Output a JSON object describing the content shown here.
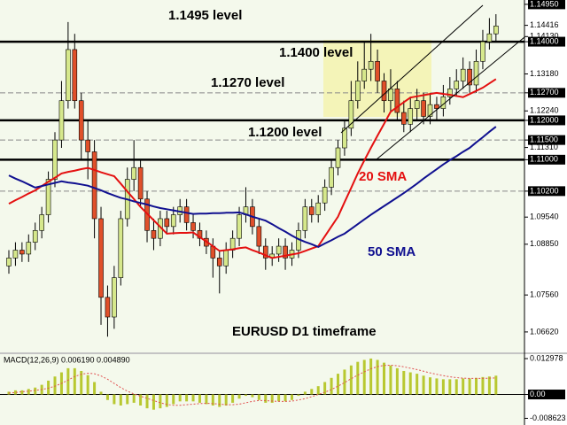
{
  "chart_data": [
    {
      "type": "candlestick",
      "annotations": [
        {
          "text": "1.1495 level"
        },
        {
          "text": "1.1400 level"
        },
        {
          "text": "1.1270 level"
        },
        {
          "text": "1.1200 level"
        },
        {
          "text": "EURUSD D1 timeframe"
        }
      ],
      "ylim": [
        1.061,
        1.1506
      ],
      "yticks": [
        {
          "value": 1.1495,
          "label": "1.14950",
          "boxed": true
        },
        {
          "value": 1.14416,
          "label": "1.14416"
        },
        {
          "value": 1.1413,
          "label": "1.14130"
        },
        {
          "value": 1.14,
          "label": "1.14000",
          "boxed": true
        },
        {
          "value": 1.1318,
          "label": "1.13180"
        },
        {
          "value": 1.127,
          "label": "1.12700",
          "boxed": true
        },
        {
          "value": 1.1224,
          "label": "1.12240"
        },
        {
          "value": 1.12,
          "label": "1.12000",
          "boxed": true
        },
        {
          "value": 1.115,
          "label": "1.11500",
          "boxed": true
        },
        {
          "value": 1.1131,
          "label": "1.11310"
        },
        {
          "value": 1.11,
          "label": "1.11000",
          "boxed": true
        },
        {
          "value": 1.102,
          "label": "1.10200",
          "boxed": true
        },
        {
          "value": 1.0954,
          "label": "1.09540"
        },
        {
          "value": 1.0885,
          "label": "1.08850"
        },
        {
          "value": 1.0756,
          "label": "1.07560"
        },
        {
          "value": 1.0662,
          "label": "1.06620"
        }
      ],
      "levels": [
        {
          "value": 1.14,
          "style": "solid"
        },
        {
          "value": 1.127,
          "style": "dashed"
        },
        {
          "value": 1.12,
          "style": "solid"
        },
        {
          "value": 1.115,
          "style": "dashed"
        },
        {
          "value": 1.11,
          "style": "solid"
        },
        {
          "value": 1.102,
          "style": "dashed"
        }
      ],
      "up_color": "#d6e88c",
      "down_color": "#e0502a",
      "candles": {
        "open": [
          1.083,
          1.085,
          1.087,
          1.086,
          1.089,
          1.092,
          1.096,
          1.105,
          1.115,
          1.125,
          1.138,
          1.125,
          1.115,
          1.112,
          1.095,
          1.075,
          1.07,
          1.08,
          1.095,
          1.105,
          1.108,
          1.1,
          1.092,
          1.09,
          1.095,
          1.093,
          1.096,
          1.098,
          1.094,
          1.092,
          1.09,
          1.088,
          1.085,
          1.083,
          1.087,
          1.09,
          1.096,
          1.098,
          1.093,
          1.088,
          1.085,
          1.086,
          1.088,
          1.085,
          1.087,
          1.092,
          1.098,
          1.096,
          1.099,
          1.103,
          1.108,
          1.113,
          1.118,
          1.125,
          1.13,
          1.133,
          1.135,
          1.13,
          1.125,
          1.128,
          1.122,
          1.119,
          1.123,
          1.125,
          1.121,
          1.124,
          1.123,
          1.126,
          1.128,
          1.13,
          1.133,
          1.129,
          1.135,
          1.14,
          1.142
        ],
        "high": [
          1.087,
          1.089,
          1.089,
          1.091,
          1.094,
          1.098,
          1.107,
          1.117,
          1.13,
          1.145,
          1.142,
          1.127,
          1.12,
          1.115,
          1.098,
          1.078,
          1.083,
          1.097,
          1.108,
          1.115,
          1.11,
          1.102,
          1.095,
          1.097,
          1.097,
          1.098,
          1.1,
          1.1,
          1.096,
          1.094,
          1.092,
          1.09,
          1.087,
          1.089,
          1.092,
          1.098,
          1.103,
          1.1,
          1.095,
          1.09,
          1.088,
          1.09,
          1.09,
          1.089,
          1.094,
          1.1,
          1.1,
          1.101,
          1.105,
          1.11,
          1.115,
          1.12,
          1.13,
          1.135,
          1.14,
          1.142,
          1.138,
          1.132,
          1.133,
          1.13,
          1.125,
          1.126,
          1.128,
          1.127,
          1.127,
          1.126,
          1.129,
          1.131,
          1.133,
          1.136,
          1.135,
          1.138,
          1.143,
          1.146,
          1.147
        ],
        "low": [
          1.081,
          1.083,
          1.084,
          1.084,
          1.087,
          1.09,
          1.094,
          1.103,
          1.113,
          1.123,
          1.123,
          1.11,
          1.105,
          1.09,
          1.068,
          1.065,
          1.067,
          1.078,
          1.093,
          1.102,
          1.098,
          1.089,
          1.087,
          1.088,
          1.091,
          1.091,
          1.094,
          1.092,
          1.09,
          1.088,
          1.086,
          1.08,
          1.076,
          1.081,
          1.085,
          1.088,
          1.094,
          1.091,
          1.086,
          1.082,
          1.083,
          1.084,
          1.082,
          1.083,
          1.085,
          1.09,
          1.094,
          1.094,
          1.097,
          1.101,
          1.106,
          1.111,
          1.116,
          1.123,
          1.128,
          1.13,
          1.127,
          1.122,
          1.122,
          1.12,
          1.117,
          1.117,
          1.12,
          1.119,
          1.119,
          1.12,
          1.121,
          1.124,
          1.126,
          1.128,
          1.127,
          1.127,
          1.133,
          1.138,
          1.14
        ],
        "close": [
          1.085,
          1.087,
          1.086,
          1.089,
          1.092,
          1.096,
          1.105,
          1.115,
          1.125,
          1.138,
          1.125,
          1.115,
          1.112,
          1.095,
          1.075,
          1.07,
          1.08,
          1.095,
          1.105,
          1.108,
          1.1,
          1.092,
          1.09,
          1.095,
          1.093,
          1.096,
          1.098,
          1.094,
          1.092,
          1.09,
          1.088,
          1.085,
          1.083,
          1.087,
          1.09,
          1.096,
          1.098,
          1.093,
          1.088,
          1.085,
          1.086,
          1.088,
          1.085,
          1.087,
          1.092,
          1.098,
          1.096,
          1.099,
          1.103,
          1.108,
          1.113,
          1.118,
          1.125,
          1.13,
          1.133,
          1.135,
          1.13,
          1.125,
          1.128,
          1.122,
          1.119,
          1.123,
          1.125,
          1.121,
          1.124,
          1.123,
          1.126,
          1.128,
          1.13,
          1.133,
          1.129,
          1.135,
          1.14,
          1.142,
          1.144
        ]
      },
      "series": [
        {
          "name": "20 SMA",
          "color": "#e41010",
          "values": [
            1.0988,
            1.0997,
            1.1005,
            1.1014,
            1.1022,
            1.1033,
            1.1044,
            1.1054,
            1.1065,
            1.1069,
            1.1072,
            1.1076,
            1.1079,
            1.1074,
            1.1068,
            1.1063,
            1.1058,
            1.1039,
            1.1019,
            1.1,
            1.098,
            1.0963,
            1.0946,
            1.0929,
            1.0912,
            1.0913,
            1.0914,
            1.0914,
            1.0915,
            1.0903,
            1.0892,
            1.088,
            1.0868,
            1.087,
            1.0872,
            1.0875,
            1.0877,
            1.087,
            1.0864,
            1.0857,
            1.085,
            1.0853,
            1.0856,
            1.0859,
            1.0862,
            1.0868,
            1.0874,
            1.088,
            1.0905,
            1.093,
            1.0955,
            1.0992,
            1.1028,
            1.1065,
            1.1098,
            1.113,
            1.1161,
            1.1191,
            1.1222,
            1.1234,
            1.1246,
            1.1258,
            1.1261,
            1.1264,
            1.1267,
            1.127,
            1.1267,
            1.1265,
            1.1262,
            1.1259,
            1.1267,
            1.1275,
            1.1283,
            1.1294,
            1.1305
          ]
        },
        {
          "name": "50 SMA",
          "color": "#101090",
          "values": [
            1.106,
            1.1052,
            1.1045,
            1.1037,
            1.1029,
            1.1033,
            1.1037,
            1.1041,
            1.1045,
            1.1042,
            1.104,
            1.1037,
            1.1034,
            1.1028,
            1.1022,
            1.1015,
            1.1009,
            1.1003,
            1.0999,
            1.0994,
            1.099,
            1.0986,
            1.0981,
            1.0977,
            1.0974,
            1.0971,
            1.0968,
            1.0965,
            1.0962,
            1.0963,
            1.0963,
            1.0964,
            1.0964,
            1.0965,
            1.0965,
            1.0966,
            1.0961,
            1.0955,
            1.095,
            1.0945,
            1.0936,
            1.0926,
            1.0917,
            1.0907,
            1.0898,
            1.0891,
            1.0885,
            1.0878,
            1.0887,
            1.0895,
            1.0904,
            1.0912,
            1.0924,
            1.0936,
            1.0948,
            1.096,
            1.0971,
            1.0982,
            1.0993,
            1.1004,
            1.1015,
            1.1027,
            1.1039,
            1.1052,
            1.1064,
            1.1076,
            1.1088,
            1.1099,
            1.1109,
            1.112,
            1.113,
            1.1144,
            1.1157,
            1.1171,
            1.1184
          ]
        }
      ]
    },
    {
      "type": "bar",
      "title": "MACD(12,26,9) 0.006190 0.004890",
      "ylim": [
        -0.0104,
        0.0149
      ],
      "yticks": [
        0.012978,
        {
          "value": 0,
          "label": "0.00",
          "boxed": true
        },
        -0.008623
      ],
      "series": [
        {
          "color": "#b8c830",
          "values": [
            0.001,
            0.0015,
            0.0015,
            0.002,
            0.0025,
            0.0035,
            0.005,
            0.0065,
            0.008,
            0.0095,
            0.0095,
            0.0085,
            0.007,
            0.0045,
            0.001,
            -0.002,
            -0.0035,
            -0.004,
            -0.0035,
            -0.003,
            -0.004,
            -0.005,
            -0.0055,
            -0.005,
            -0.0045,
            -0.0035,
            -0.0025,
            -0.0025,
            -0.0025,
            -0.003,
            -0.0035,
            -0.004,
            -0.0045,
            -0.004,
            -0.003,
            -0.0015,
            -0.0005,
            -0.001,
            -0.002,
            -0.003,
            -0.003,
            -0.0025,
            -0.0025,
            -0.002,
            -0.0005,
            0.001,
            0.002,
            0.003,
            0.0045,
            0.006,
            0.0075,
            0.009,
            0.0105,
            0.0118,
            0.0125,
            0.013,
            0.0125,
            0.0115,
            0.0105,
            0.0095,
            0.0085,
            0.008,
            0.0075,
            0.0068,
            0.0062,
            0.0058,
            0.0055,
            0.0055,
            0.0055,
            0.0058,
            0.0058,
            0.006,
            0.0063,
            0.0065,
            0.0068
          ]
        },
        {
          "color": "#e05050",
          "dotted": true,
          "values": [
            0.0005,
            0.0007,
            0.001,
            0.0012,
            0.0015,
            0.0018,
            0.0023,
            0.003,
            0.004,
            0.0052,
            0.0065,
            0.0073,
            0.0077,
            0.0075,
            0.0067,
            0.0055,
            0.004,
            0.0025,
            0.0012,
            0.0002,
            -0.0006,
            -0.0014,
            -0.0022,
            -0.003,
            -0.0036,
            -0.0039,
            -0.0039,
            -0.0037,
            -0.0035,
            -0.0033,
            -0.0032,
            -0.0033,
            -0.0035,
            -0.0037,
            -0.0037,
            -0.0035,
            -0.003,
            -0.0025,
            -0.0022,
            -0.0022,
            -0.0024,
            -0.0025,
            -0.0025,
            -0.0024,
            -0.002,
            -0.0015,
            -0.0008,
            0,
            0.0008,
            0.0018,
            0.003,
            0.0043,
            0.0057,
            0.007,
            0.0082,
            0.0093,
            0.0101,
            0.0105,
            0.0106,
            0.0104,
            0.01,
            0.0095,
            0.009,
            0.0084,
            0.0078,
            0.0073,
            0.0068,
            0.0064,
            0.0061,
            0.0059,
            0.0058,
            0.0058,
            0.0058,
            0.0059,
            0.006
          ]
        }
      ]
    }
  ]
}
